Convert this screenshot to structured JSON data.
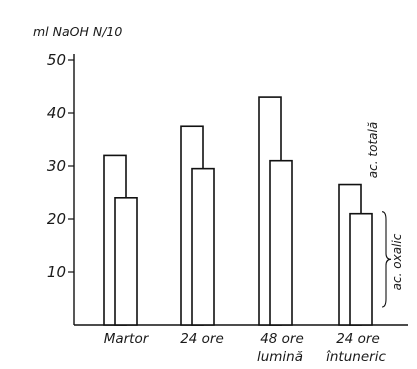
{
  "chart_data": {
    "type": "bar",
    "ylabel": "ml NaOH N/10",
    "ylim": [
      0,
      50
    ],
    "yticks": [
      "10",
      "20",
      "30",
      "40",
      "50"
    ],
    "categories": [
      {
        "line1": "Martor",
        "line2": ""
      },
      {
        "line1": "24 ore",
        "line2": ""
      },
      {
        "line1": "48 ore",
        "line2": "lumină"
      },
      {
        "line1": "24   ore",
        "line2": "întuneric"
      }
    ],
    "series": [
      {
        "name": "ac. totală",
        "values": [
          32,
          37.5,
          43,
          26.5
        ]
      },
      {
        "name": "ac. oxalic",
        "values": [
          24,
          29.5,
          31,
          21
        ]
      }
    ],
    "grid": false,
    "legend": "series labels written vertically next to the last group"
  }
}
